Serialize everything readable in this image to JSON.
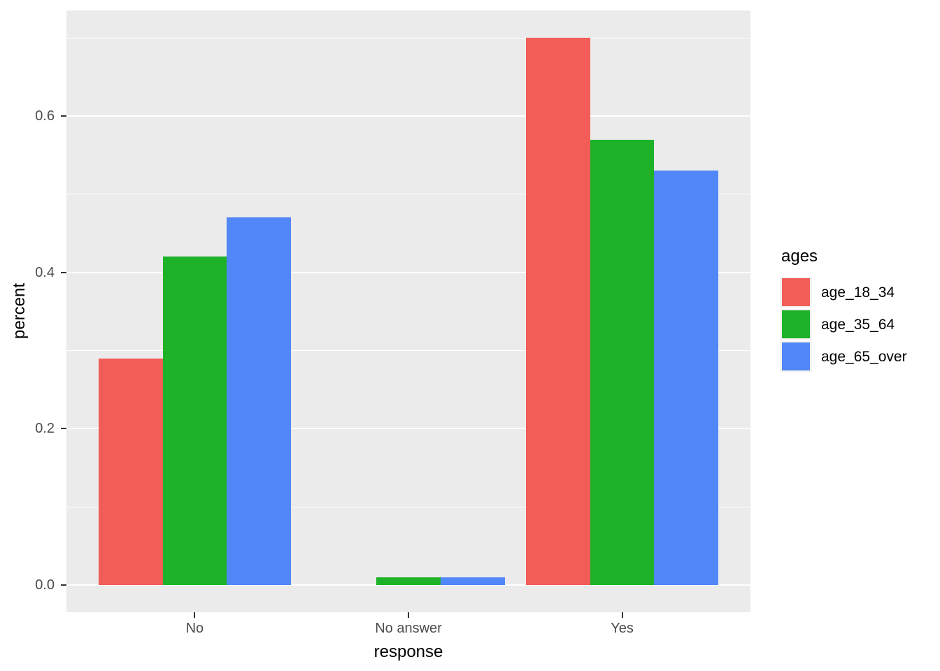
{
  "chart_data": {
    "type": "bar",
    "title": "",
    "xlabel": "response",
    "ylabel": "percent",
    "categories": [
      "No",
      "No answer",
      "Yes"
    ],
    "series": [
      {
        "name": "age_18_34",
        "color": "#F25D58",
        "values": [
          0.29,
          0.0,
          0.7
        ]
      },
      {
        "name": "age_35_64",
        "color": "#1DB227",
        "values": [
          0.42,
          0.01,
          0.57
        ]
      },
      {
        "name": "age_65_over",
        "color": "#5187F8",
        "values": [
          0.47,
          0.01,
          0.53
        ]
      }
    ],
    "legend": {
      "title": "ages",
      "position": "right",
      "entries": [
        "age_18_34",
        "age_35_64",
        "age_65_over"
      ]
    },
    "ylim": [
      -0.035,
      0.735
    ],
    "yticks": [
      0.0,
      0.2,
      0.4,
      0.6
    ],
    "ytick_labels": [
      "0.0",
      "0.2",
      "0.4",
      "0.6"
    ],
    "yticks_minor": [
      0.1,
      0.3,
      0.5,
      0.7
    ],
    "grid": true,
    "style": {
      "panel_bg": "#EBEBEB",
      "grid_color": "#FFFFFF",
      "tick_mark_color": "#333333",
      "axis_text_color": "#4D4D4D",
      "axis_title_color": "#000000",
      "legend_key_bg": "#F2F2F2"
    }
  }
}
